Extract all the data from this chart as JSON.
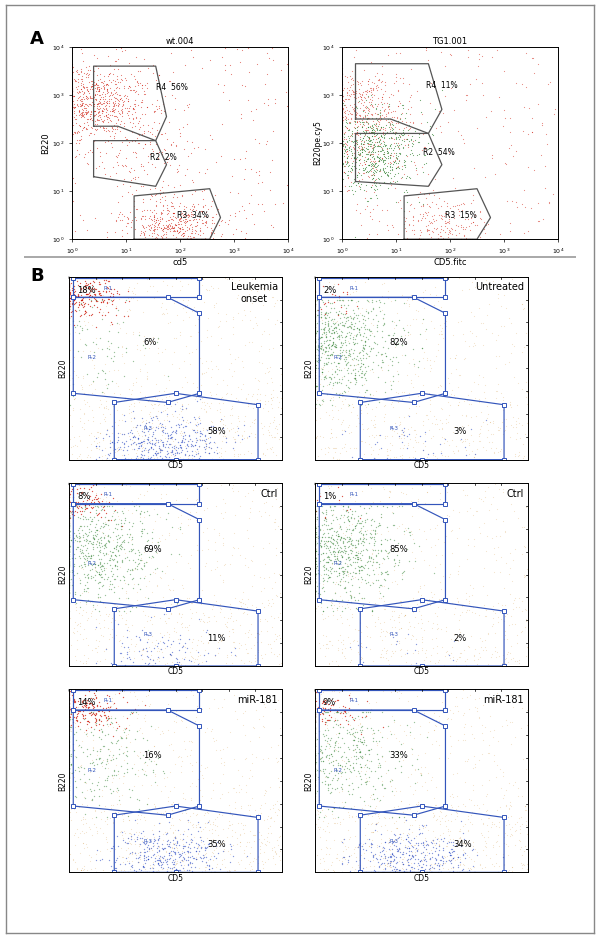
{
  "panel_A": {
    "left": {
      "title": "wt.004",
      "xlabel": "cd5",
      "ylabel": "B220",
      "r4_pct": "56%",
      "r2_pct": "2%",
      "r3_pct": "34%",
      "dot_color": "#cc2200"
    },
    "right": {
      "title": "TG1.001",
      "xlabel": "CD5.fitc",
      "ylabel": "B220pe.cy5",
      "r4_pct": "11%",
      "r2_pct": "54%",
      "r3_pct": "15%",
      "dot_color": "#cc2200",
      "dot_color2": "#009900"
    }
  },
  "panel_B": {
    "plots": [
      {
        "title": "Leukemia\nonset",
        "col": 0,
        "row": 0,
        "r1_pct": "18%",
        "r2_pct": "6%",
        "r3_pct": "58%",
        "n_red": 250,
        "n_green": 80,
        "n_blue": 400,
        "n_orange": 500
      },
      {
        "title": "Untreated",
        "col": 1,
        "row": 0,
        "r1_pct": "2%",
        "r2_pct": "82%",
        "r3_pct": "3%",
        "n_red": 30,
        "n_green": 700,
        "n_blue": 40,
        "n_orange": 400
      },
      {
        "title": "Ctrl",
        "col": 0,
        "row": 1,
        "r1_pct": "8%",
        "r2_pct": "69%",
        "r3_pct": "11%",
        "n_red": 120,
        "n_green": 600,
        "n_blue": 100,
        "n_orange": 400
      },
      {
        "title": "Ctrl",
        "col": 1,
        "row": 1,
        "r1_pct": "1%",
        "r2_pct": "85%",
        "r3_pct": "2%",
        "n_red": 15,
        "n_green": 700,
        "n_blue": 20,
        "n_orange": 400
      },
      {
        "title": "miR-181",
        "col": 0,
        "row": 2,
        "r1_pct": "14%",
        "r2_pct": "16%",
        "r3_pct": "35%",
        "n_red": 200,
        "n_green": 250,
        "n_blue": 350,
        "n_orange": 500
      },
      {
        "title": "miR-181",
        "col": 1,
        "row": 2,
        "r1_pct": "9%",
        "r2_pct": "33%",
        "r3_pct": "34%",
        "n_red": 80,
        "n_green": 400,
        "n_blue": 350,
        "n_orange": 500
      }
    ]
  },
  "bg_color": "#ffffff",
  "sep_color": "#aaaaaa",
  "gate_color_A": "#000000",
  "gate_color_B": "#3355bb",
  "orange_color": "#cc8822",
  "red_color": "#cc1100",
  "green_color": "#227722",
  "blue_color": "#1133bb"
}
